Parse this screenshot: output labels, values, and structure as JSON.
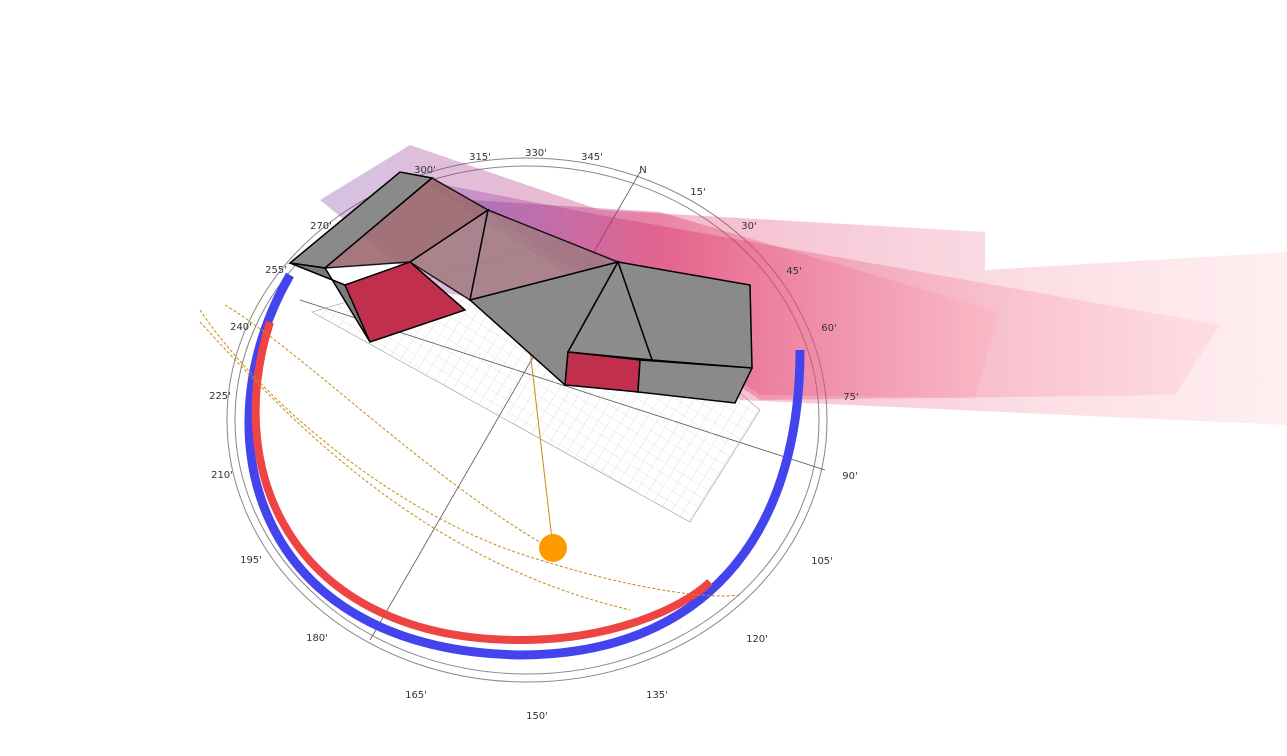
{
  "compass": {
    "labels": [
      "N",
      "15'",
      "30'",
      "45'",
      "60'",
      "75'",
      "90'",
      "105'",
      "120'",
      "135'",
      "150'",
      "165'",
      "180'",
      "195'",
      "210'",
      "225'",
      "240'",
      "255'",
      "270'",
      "300'",
      "315'",
      "330'",
      "345'"
    ]
  }
}
